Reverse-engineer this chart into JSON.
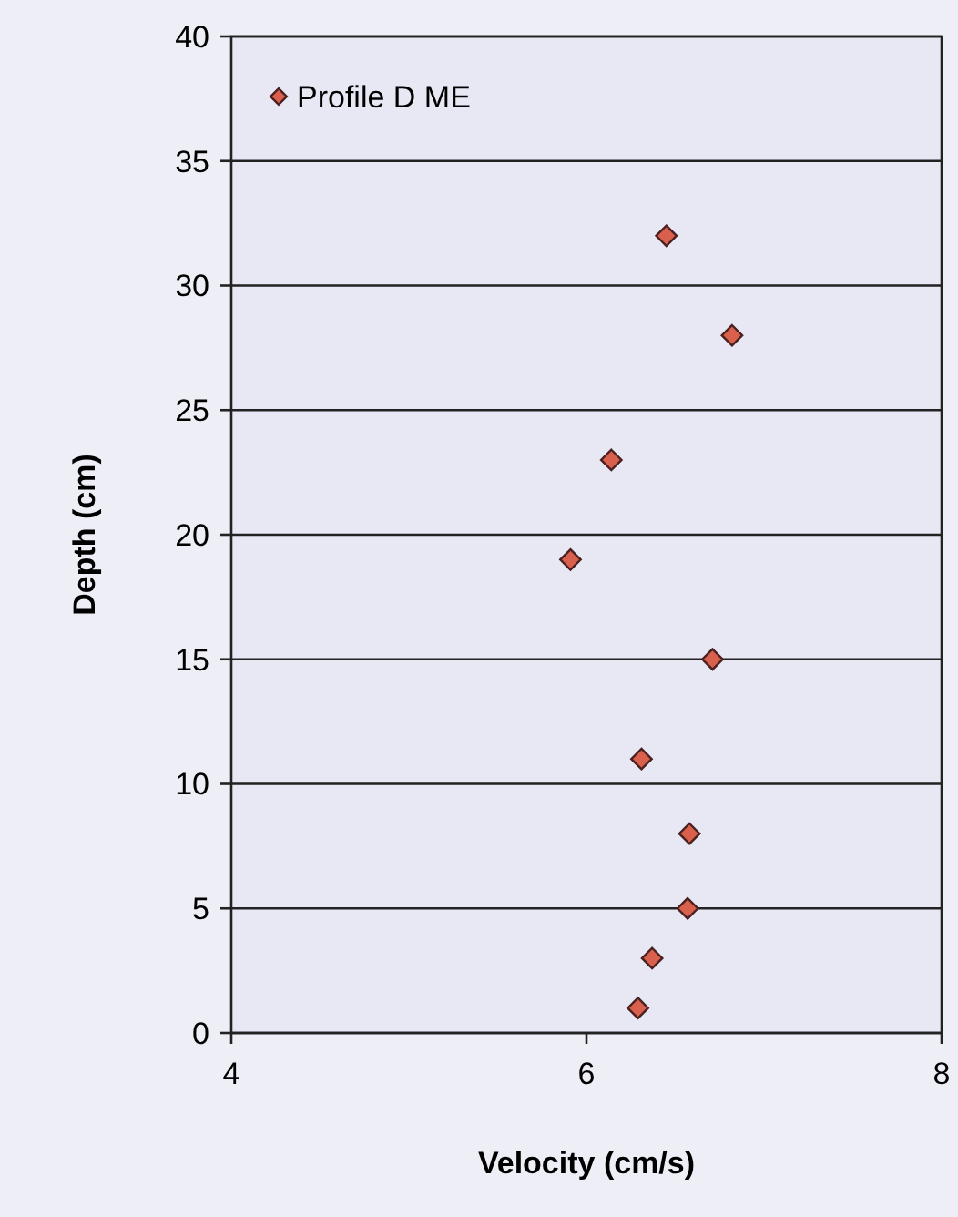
{
  "chart_data": {
    "type": "scatter",
    "xlabel": "Velocity (cm/s)",
    "ylabel": "Depth (cm)",
    "xlim": [
      4,
      8
    ],
    "xticks": [
      4,
      6,
      8
    ],
    "ylim": [
      0,
      40
    ],
    "yticks": [
      0,
      5,
      10,
      15,
      20,
      25,
      30,
      35,
      40
    ],
    "grid": "y",
    "legend": "top left",
    "marker": "diamond",
    "series": [
      {
        "name": "Profile D ME",
        "color": "#d9604c",
        "x": [
          6.45,
          6.82,
          6.14,
          5.91,
          6.71,
          6.31,
          6.58,
          6.57,
          6.37,
          6.29
        ],
        "values": [
          32,
          28,
          23,
          19,
          15,
          11,
          8,
          5,
          3,
          1
        ]
      }
    ]
  }
}
